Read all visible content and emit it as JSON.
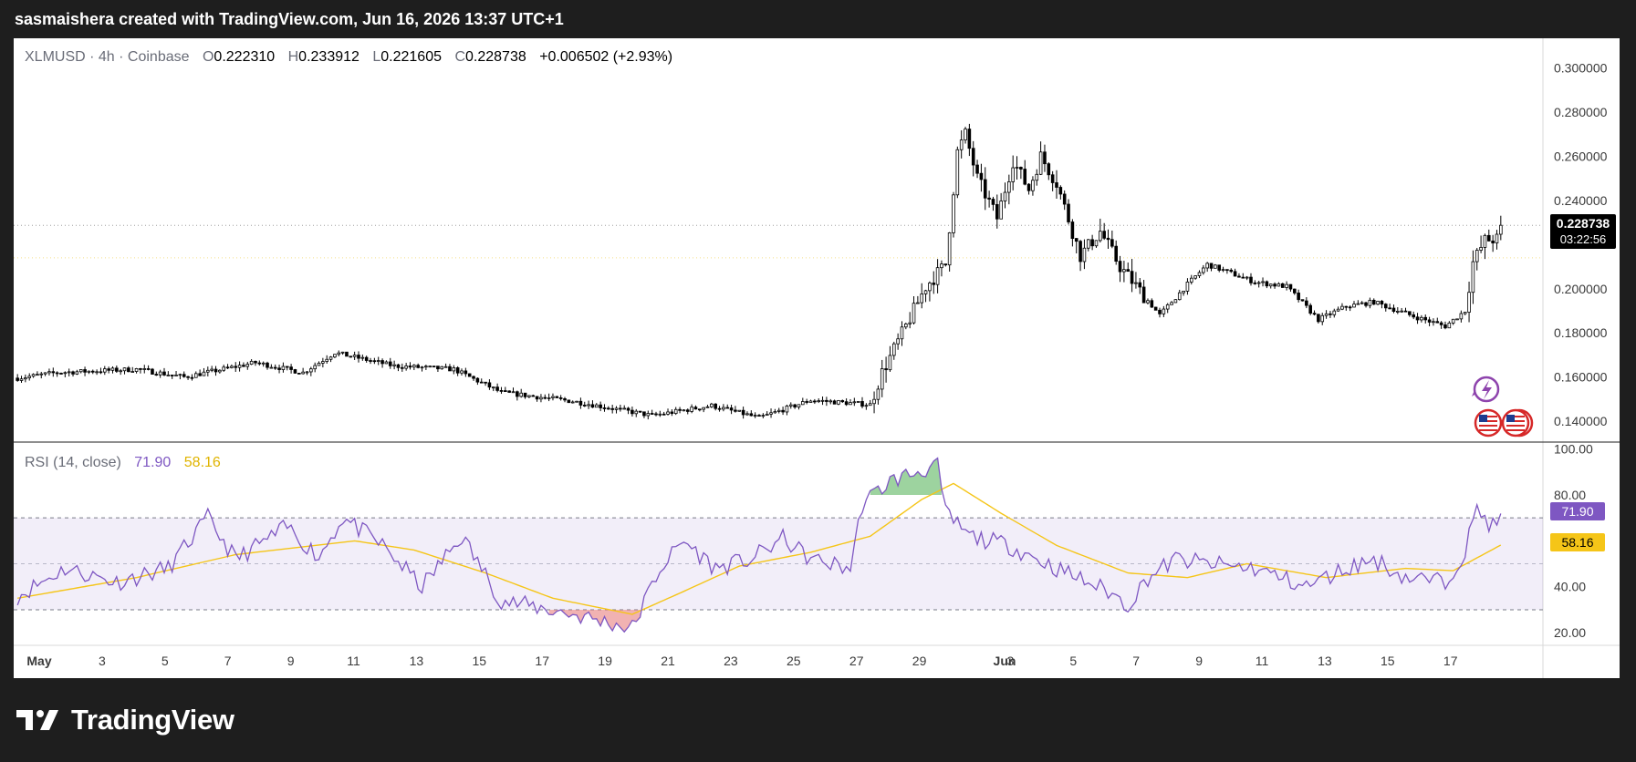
{
  "header": {
    "attribution": "sasmaishera created with TradingView.com, Jun 16, 2026 13:37 UTC+1"
  },
  "legend": {
    "symbol": "XLMUSD · 4h · Coinbase",
    "o_label": "O",
    "o_value": "0.222310",
    "h_label": "H",
    "h_value": "0.233912",
    "l_label": "L",
    "l_value": "0.221605",
    "c_label": "C",
    "c_value": "0.228738",
    "change": "+0.006502 (+2.93%)"
  },
  "rsi_legend": {
    "label": "RSI (14, close)",
    "rsi_value": "71.90",
    "ma_value": "58.16"
  },
  "price_tag": {
    "price": "0.228738",
    "countdown": "03:22:56"
  },
  "rsi_tags": {
    "rsi": "71.90",
    "ma": "58.16"
  },
  "footer": {
    "brand": "TradingView"
  },
  "colors": {
    "up": "#000000",
    "down": "#000000",
    "rsi_line": "#7e57c2",
    "rsi_ma": "#f5c518",
    "rsi_band": "#7e57c2",
    "overbought_fill": "#4caf50",
    "oversold_fill": "#e57373",
    "price_tag_bg": "#000000",
    "rsi_tag_bg": "#7e57c2",
    "ma_tag_bg": "#f5c518"
  },
  "chart_data": [
    {
      "type": "candlestick",
      "x_ticks": [
        "May",
        "3",
        "5",
        "7",
        "9",
        "11",
        "13",
        "15",
        "17",
        "19",
        "21",
        "23",
        "25",
        "27",
        "29",
        "Jun",
        "3",
        "5",
        "7",
        "9",
        "11",
        "13",
        "15",
        "17"
      ],
      "y_ticks": [
        "0.300000",
        "0.280000",
        "0.260000",
        "0.240000",
        "0.200000",
        "0.180000",
        "0.160000",
        "0.140000"
      ],
      "ylim": [
        0.1305,
        0.3135
      ],
      "last_price": 0.228738,
      "close_anchors": [
        {
          "t": 0,
          "v": 0.1595
        },
        {
          "t": 10,
          "v": 0.162
        },
        {
          "t": 30,
          "v": 0.1635
        },
        {
          "t": 42,
          "v": 0.16
        },
        {
          "t": 60,
          "v": 0.1665
        },
        {
          "t": 72,
          "v": 0.162
        },
        {
          "t": 80,
          "v": 0.171
        },
        {
          "t": 95,
          "v": 0.165
        },
        {
          "t": 110,
          "v": 0.1635
        },
        {
          "t": 122,
          "v": 0.153
        },
        {
          "t": 140,
          "v": 0.149
        },
        {
          "t": 160,
          "v": 0.1425
        },
        {
          "t": 175,
          "v": 0.147
        },
        {
          "t": 187,
          "v": 0.1415
        },
        {
          "t": 200,
          "v": 0.1495
        },
        {
          "t": 215,
          "v": 0.1475
        },
        {
          "t": 218,
          "v": 0.162
        },
        {
          "t": 224,
          "v": 0.183
        },
        {
          "t": 229,
          "v": 0.201
        },
        {
          "t": 234,
          "v": 0.211
        },
        {
          "t": 237,
          "v": 0.262
        },
        {
          "t": 239,
          "v": 0.27
        },
        {
          "t": 242,
          "v": 0.25
        },
        {
          "t": 247,
          "v": 0.232
        },
        {
          "t": 251,
          "v": 0.258
        },
        {
          "t": 255,
          "v": 0.245
        },
        {
          "t": 258,
          "v": 0.26
        },
        {
          "t": 262,
          "v": 0.248
        },
        {
          "t": 268,
          "v": 0.215
        },
        {
          "t": 273,
          "v": 0.226
        },
        {
          "t": 278,
          "v": 0.21
        },
        {
          "t": 288,
          "v": 0.188
        },
        {
          "t": 295,
          "v": 0.202
        },
        {
          "t": 300,
          "v": 0.211
        },
        {
          "t": 312,
          "v": 0.203
        },
        {
          "t": 320,
          "v": 0.201
        },
        {
          "t": 328,
          "v": 0.186
        },
        {
          "t": 335,
          "v": 0.192
        },
        {
          "t": 342,
          "v": 0.194
        },
        {
          "t": 352,
          "v": 0.1875
        },
        {
          "t": 360,
          "v": 0.183
        },
        {
          "t": 365,
          "v": 0.19
        },
        {
          "t": 367,
          "v": 0.212
        },
        {
          "t": 370,
          "v": 0.222
        },
        {
          "t": 373,
          "v": 0.2225
        },
        {
          "t": 374,
          "v": 0.228738
        }
      ]
    },
    {
      "type": "line",
      "title": "RSI (14, close)",
      "y_ticks": [
        "100.00",
        "80.00",
        "40.00",
        "20.00"
      ],
      "ylim": [
        14.5,
        103
      ],
      "bands": [
        70,
        50,
        30
      ],
      "series": [
        {
          "name": "RSI",
          "anchors": [
            {
              "t": 0,
              "v": 36
            },
            {
              "t": 12,
              "v": 48
            },
            {
              "t": 25,
              "v": 42
            },
            {
              "t": 38,
              "v": 48
            },
            {
              "t": 48,
              "v": 70
            },
            {
              "t": 55,
              "v": 52
            },
            {
              "t": 68,
              "v": 66
            },
            {
              "t": 76,
              "v": 53
            },
            {
              "t": 82,
              "v": 70
            },
            {
              "t": 92,
              "v": 58
            },
            {
              "t": 102,
              "v": 40
            },
            {
              "t": 112,
              "v": 62
            },
            {
              "t": 122,
              "v": 34
            },
            {
              "t": 140,
              "v": 28
            },
            {
              "t": 155,
              "v": 22
            },
            {
              "t": 162,
              "v": 48
            },
            {
              "t": 168,
              "v": 60
            },
            {
              "t": 176,
              "v": 48
            },
            {
              "t": 185,
              "v": 52
            },
            {
              "t": 193,
              "v": 61
            },
            {
              "t": 200,
              "v": 52
            },
            {
              "t": 210,
              "v": 48
            },
            {
              "t": 213,
              "v": 76
            },
            {
              "t": 220,
              "v": 86
            },
            {
              "t": 232,
              "v": 93
            },
            {
              "t": 234,
              "v": 72
            },
            {
              "t": 240,
              "v": 62
            },
            {
              "t": 250,
              "v": 58
            },
            {
              "t": 262,
              "v": 48
            },
            {
              "t": 275,
              "v": 38
            },
            {
              "t": 280,
              "v": 32
            },
            {
              "t": 285,
              "v": 44
            },
            {
              "t": 292,
              "v": 52
            },
            {
              "t": 300,
              "v": 50
            },
            {
              "t": 312,
              "v": 48
            },
            {
              "t": 325,
              "v": 40
            },
            {
              "t": 335,
              "v": 48
            },
            {
              "t": 342,
              "v": 52
            },
            {
              "t": 350,
              "v": 44
            },
            {
              "t": 360,
              "v": 42
            },
            {
              "t": 365,
              "v": 56
            },
            {
              "t": 368,
              "v": 74
            },
            {
              "t": 372,
              "v": 66
            },
            {
              "t": 374,
              "v": 71.9
            }
          ]
        },
        {
          "name": "RSI MA",
          "anchors": [
            {
              "t": 0,
              "v": 35
            },
            {
              "t": 30,
              "v": 44
            },
            {
              "t": 55,
              "v": 54
            },
            {
              "t": 85,
              "v": 60
            },
            {
              "t": 100,
              "v": 56
            },
            {
              "t": 118,
              "v": 46
            },
            {
              "t": 135,
              "v": 35
            },
            {
              "t": 155,
              "v": 28
            },
            {
              "t": 168,
              "v": 38
            },
            {
              "t": 182,
              "v": 49
            },
            {
              "t": 200,
              "v": 55
            },
            {
              "t": 215,
              "v": 62
            },
            {
              "t": 228,
              "v": 78
            },
            {
              "t": 236,
              "v": 85
            },
            {
              "t": 248,
              "v": 72
            },
            {
              "t": 262,
              "v": 58
            },
            {
              "t": 280,
              "v": 46
            },
            {
              "t": 295,
              "v": 44
            },
            {
              "t": 310,
              "v": 50
            },
            {
              "t": 330,
              "v": 44
            },
            {
              "t": 350,
              "v": 48
            },
            {
              "t": 362,
              "v": 47
            },
            {
              "t": 374,
              "v": 58.16
            }
          ]
        }
      ]
    }
  ]
}
